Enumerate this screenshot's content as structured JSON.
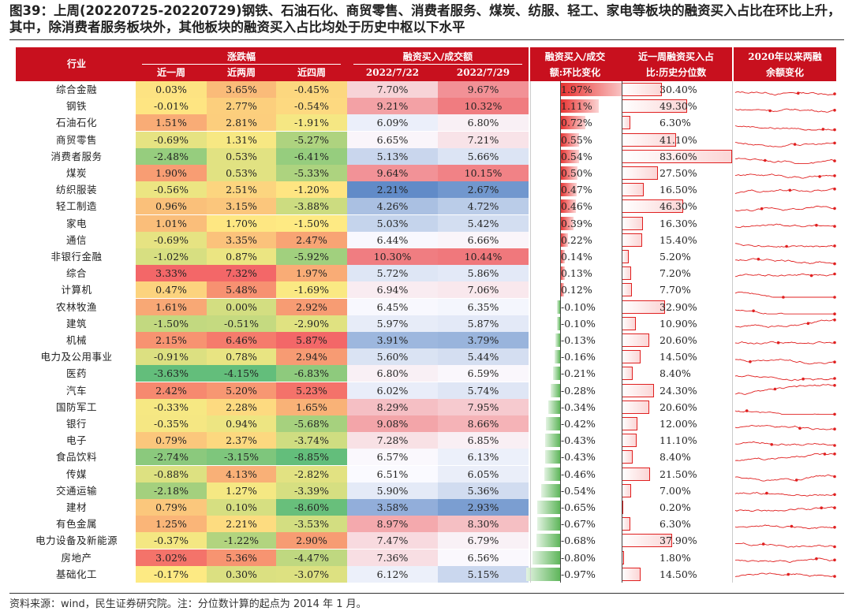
{
  "title": "图39：上周(20220725-20220729)钢铁、石油石化、商贸零售、消费者服务、煤炭、纺服、轻工、家电等板块的融资买入占比在环比上升，其中，除消费者服务板块外，其他板块的融资买入占比均处于历史中枢以下水平",
  "footer": "资料来源：wind，民生证券研究院。注：分位数计算的起点为 2014 年 1 月。",
  "header": {
    "industry": "行业",
    "change_group": "涨跌幅",
    "w1": "近一周",
    "w2": "近两周",
    "w4": "近四周",
    "ratio_group": "融资买入/成交额",
    "d1": "2022/7/22",
    "d2": "2022/7/29",
    "chg_l1": "融资买入/成交",
    "chg_l2": "额:环比变化",
    "pct_l1": "近一周融资买入占",
    "pct_l2": "比:历史分位数",
    "spark_l1": "2020年以来两融",
    "spark_l2": "余额变化"
  },
  "chart_data": {
    "type": "table",
    "columns": [
      "行业",
      "近一周",
      "近两周",
      "近四周",
      "2022/7/22",
      "2022/7/29",
      "融资买入/成交额:环比变化",
      "近一周融资买入占比:历史分位数",
      "2020年以来两融余额变化"
    ],
    "rows": [
      {
        "name": "综合金融",
        "w1": "0.03%",
        "w2": "3.65%",
        "w4": "-0.45%",
        "d1": "7.70%",
        "d2": "9.67%",
        "chg": "1.97%",
        "pct": "30.40%"
      },
      {
        "name": "钢铁",
        "w1": "-0.01%",
        "w2": "2.77%",
        "w4": "-0.54%",
        "d1": "9.21%",
        "d2": "10.32%",
        "chg": "1.11%",
        "pct": "49.30%"
      },
      {
        "name": "石油石化",
        "w1": "1.51%",
        "w2": "2.81%",
        "w4": "-1.91%",
        "d1": "6.09%",
        "d2": "6.80%",
        "chg": "0.72%",
        "pct": "6.30%"
      },
      {
        "name": "商贸零售",
        "w1": "-0.69%",
        "w2": "1.31%",
        "w4": "-5.27%",
        "d1": "6.65%",
        "d2": "7.21%",
        "chg": "0.55%",
        "pct": "41.10%"
      },
      {
        "name": "消费者服务",
        "w1": "-2.48%",
        "w2": "0.53%",
        "w4": "-6.41%",
        "d1": "5.13%",
        "d2": "5.66%",
        "chg": "0.54%",
        "pct": "83.60%"
      },
      {
        "name": "煤炭",
        "w1": "1.90%",
        "w2": "0.53%",
        "w4": "-5.33%",
        "d1": "9.64%",
        "d2": "10.15%",
        "chg": "0.50%",
        "pct": "27.50%"
      },
      {
        "name": "纺织服装",
        "w1": "-0.56%",
        "w2": "2.51%",
        "w4": "-1.20%",
        "d1": "2.21%",
        "d2": "2.67%",
        "chg": "0.47%",
        "pct": "16.50%"
      },
      {
        "name": "轻工制造",
        "w1": "0.96%",
        "w2": "3.15%",
        "w4": "-3.88%",
        "d1": "4.26%",
        "d2": "4.72%",
        "chg": "0.46%",
        "pct": "46.30%"
      },
      {
        "name": "家电",
        "w1": "1.01%",
        "w2": "1.70%",
        "w4": "-1.50%",
        "d1": "5.03%",
        "d2": "5.42%",
        "chg": "0.39%",
        "pct": "16.30%"
      },
      {
        "name": "通信",
        "w1": "-0.69%",
        "w2": "3.35%",
        "w4": "2.47%",
        "d1": "6.44%",
        "d2": "6.66%",
        "chg": "0.22%",
        "pct": "15.40%"
      },
      {
        "name": "非银行金融",
        "w1": "-1.02%",
        "w2": "0.87%",
        "w4": "-5.92%",
        "d1": "10.30%",
        "d2": "10.44%",
        "chg": "0.14%",
        "pct": "5.20%"
      },
      {
        "name": "综合",
        "w1": "3.33%",
        "w2": "7.32%",
        "w4": "1.97%",
        "d1": "5.72%",
        "d2": "5.86%",
        "chg": "0.13%",
        "pct": "7.20%"
      },
      {
        "name": "计算机",
        "w1": "0.47%",
        "w2": "5.48%",
        "w4": "-1.69%",
        "d1": "6.94%",
        "d2": "7.06%",
        "chg": "0.12%",
        "pct": "7.70%"
      },
      {
        "name": "农林牧渔",
        "w1": "1.61%",
        "w2": "0.00%",
        "w4": "2.92%",
        "d1": "6.45%",
        "d2": "6.35%",
        "chg": "-0.10%",
        "pct": "32.90%"
      },
      {
        "name": "建筑",
        "w1": "-1.50%",
        "w2": "-0.51%",
        "w4": "-2.90%",
        "d1": "5.97%",
        "d2": "5.87%",
        "chg": "-0.10%",
        "pct": "10.90%"
      },
      {
        "name": "机械",
        "w1": "2.15%",
        "w2": "6.46%",
        "w4": "5.87%",
        "d1": "3.91%",
        "d2": "3.79%",
        "chg": "-0.13%",
        "pct": "20.60%"
      },
      {
        "name": "电力及公用事业",
        "w1": "-0.91%",
        "w2": "0.78%",
        "w4": "2.94%",
        "d1": "5.60%",
        "d2": "5.44%",
        "chg": "-0.16%",
        "pct": "14.50%"
      },
      {
        "name": "医药",
        "w1": "-3.63%",
        "w2": "-4.15%",
        "w4": "-6.83%",
        "d1": "6.80%",
        "d2": "6.59%",
        "chg": "-0.21%",
        "pct": "8.40%"
      },
      {
        "name": "汽车",
        "w1": "2.42%",
        "w2": "5.20%",
        "w4": "5.23%",
        "d1": "6.02%",
        "d2": "5.74%",
        "chg": "-0.28%",
        "pct": "24.30%"
      },
      {
        "name": "国防军工",
        "w1": "-0.33%",
        "w2": "2.28%",
        "w4": "1.65%",
        "d1": "8.29%",
        "d2": "7.95%",
        "chg": "-0.34%",
        "pct": "20.60%"
      },
      {
        "name": "银行",
        "w1": "-0.35%",
        "w2": "0.94%",
        "w4": "-5.68%",
        "d1": "9.08%",
        "d2": "8.66%",
        "chg": "-0.42%",
        "pct": "12.00%"
      },
      {
        "name": "电子",
        "w1": "0.79%",
        "w2": "2.37%",
        "w4": "-3.74%",
        "d1": "7.28%",
        "d2": "6.85%",
        "chg": "-0.43%",
        "pct": "11.10%"
      },
      {
        "name": "食品饮料",
        "w1": "-2.74%",
        "w2": "-3.15%",
        "w4": "-8.85%",
        "d1": "6.57%",
        "d2": "6.13%",
        "chg": "-0.43%",
        "pct": "8.40%"
      },
      {
        "name": "传媒",
        "w1": "-0.88%",
        "w2": "4.13%",
        "w4": "-2.82%",
        "d1": "6.51%",
        "d2": "6.05%",
        "chg": "-0.46%",
        "pct": "21.50%"
      },
      {
        "name": "交通运输",
        "w1": "-2.18%",
        "w2": "1.27%",
        "w4": "-3.39%",
        "d1": "5.90%",
        "d2": "5.36%",
        "chg": "-0.54%",
        "pct": "7.00%"
      },
      {
        "name": "建材",
        "w1": "0.79%",
        "w2": "0.10%",
        "w4": "-8.60%",
        "d1": "3.58%",
        "d2": "2.93%",
        "chg": "-0.65%",
        "pct": "0.20%"
      },
      {
        "name": "有色金属",
        "w1": "1.25%",
        "w2": "2.21%",
        "w4": "-3.53%",
        "d1": "8.97%",
        "d2": "8.30%",
        "chg": "-0.67%",
        "pct": "6.30%"
      },
      {
        "name": "电力设备及新能源",
        "w1": "-0.37%",
        "w2": "-1.22%",
        "w4": "2.90%",
        "d1": "7.47%",
        "d2": "6.79%",
        "chg": "-0.68%",
        "pct": "37.90%"
      },
      {
        "name": "房地产",
        "w1": "3.02%",
        "w2": "5.36%",
        "w4": "-4.47%",
        "d1": "7.36%",
        "d2": "6.56%",
        "chg": "-0.80%",
        "pct": "1.80%"
      },
      {
        "name": "基础化工",
        "w1": "-0.17%",
        "w2": "0.30%",
        "w4": "-3.07%",
        "d1": "6.12%",
        "d2": "5.15%",
        "chg": "-0.97%",
        "pct": "14.50%"
      }
    ],
    "colors": {
      "header": "#c8101e",
      "positive": "#e8312f",
      "negative": "#5fb65b",
      "sparkline": "#e02020"
    }
  }
}
